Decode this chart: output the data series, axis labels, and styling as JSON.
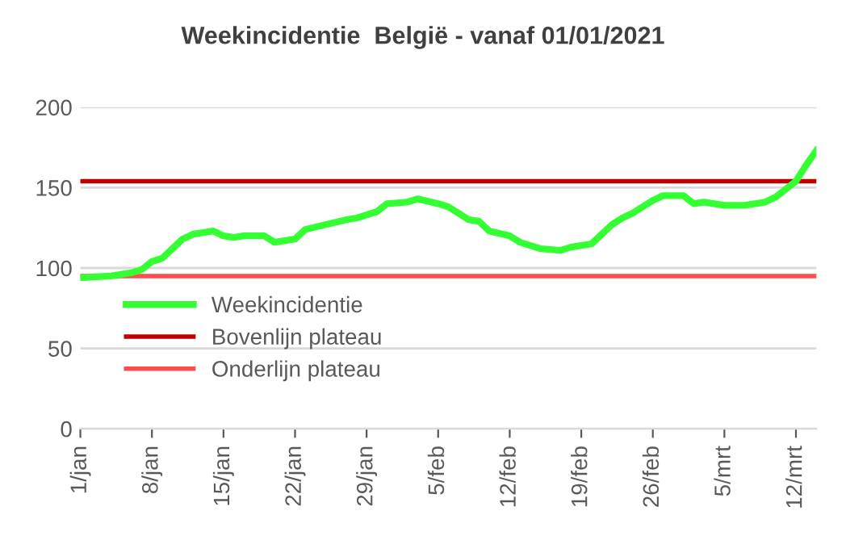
{
  "chart_data": {
    "type": "line",
    "title": "Weekincidentie  België - vanaf 01/01/2021",
    "x": [
      "2021-01-01",
      "2021-01-04",
      "2021-01-06",
      "2021-01-07",
      "2021-01-08",
      "2021-01-09",
      "2021-01-10",
      "2021-01-11",
      "2021-01-12",
      "2021-01-13",
      "2021-01-14",
      "2021-01-15",
      "2021-01-16",
      "2021-01-17",
      "2021-01-19",
      "2021-01-20",
      "2021-01-21",
      "2021-01-22",
      "2021-01-23",
      "2021-01-25",
      "2021-01-27",
      "2021-01-28",
      "2021-01-29",
      "2021-01-30",
      "2021-01-31",
      "2021-02-02",
      "2021-02-03",
      "2021-02-05",
      "2021-02-06",
      "2021-02-07",
      "2021-02-08",
      "2021-02-09",
      "2021-02-10",
      "2021-02-12",
      "2021-02-13",
      "2021-02-15",
      "2021-02-17",
      "2021-02-18",
      "2021-02-20",
      "2021-02-22",
      "2021-02-23",
      "2021-02-24",
      "2021-02-26",
      "2021-02-27",
      "2021-03-01",
      "2021-03-02",
      "2021-03-03",
      "2021-03-05",
      "2021-03-07",
      "2021-03-09",
      "2021-03-10",
      "2021-03-12",
      "2021-03-13",
      "2021-03-14"
    ],
    "series": [
      {
        "name": "Weekincidentie",
        "color": "#33ff33",
        "values": [
          94,
          95,
          97,
          99,
          104,
          106,
          112,
          118,
          121,
          122,
          123,
          120,
          119,
          120,
          120,
          116,
          117,
          118,
          124,
          127,
          130,
          131,
          133,
          135,
          140,
          141,
          143,
          140,
          138,
          134,
          130,
          129,
          123,
          120,
          116,
          112,
          111,
          113,
          115,
          127,
          131,
          134,
          142,
          145,
          145,
          140,
          141,
          139,
          139,
          141,
          144,
          154,
          164,
          173
        ]
      }
    ],
    "ref_lines": [
      {
        "axis": "y",
        "value": 154,
        "label": "Bovenlijn plateau",
        "color": "#c00000"
      },
      {
        "axis": "y",
        "value": 95,
        "label": "Onderlijn plateau",
        "color": "#ff4d4d"
      }
    ],
    "xlim": [
      "2021-01-01",
      "2021-03-14"
    ],
    "xticks": [
      {
        "value": "2021-01-01",
        "label": "1/jan"
      },
      {
        "value": "2021-01-08",
        "label": "8/jan"
      },
      {
        "value": "2021-01-15",
        "label": "15/jan"
      },
      {
        "value": "2021-01-22",
        "label": "22/jan"
      },
      {
        "value": "2021-01-29",
        "label": "29/jan"
      },
      {
        "value": "2021-02-05",
        "label": "5/feb"
      },
      {
        "value": "2021-02-12",
        "label": "12/feb"
      },
      {
        "value": "2021-02-19",
        "label": "19/feb"
      },
      {
        "value": "2021-02-26",
        "label": "26/feb"
      },
      {
        "value": "2021-03-05",
        "label": "5/mrt"
      },
      {
        "value": "2021-03-12",
        "label": "12/mrt"
      }
    ],
    "ylim": [
      0,
      200
    ],
    "yticks": [
      0,
      50,
      100,
      150,
      200
    ],
    "grid": "y",
    "legend": "bottom left",
    "marker": "none",
    "line_style": "solid"
  }
}
